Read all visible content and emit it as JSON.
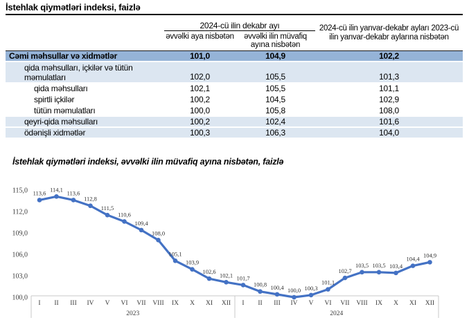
{
  "page_title": "İstehlak qiymətləri indeksi, faizlə",
  "chart_title": "İstehlak qiymətləri indeksi, əvvəlki ilin müvafiq ayına nisbətən, faizlə",
  "colors": {
    "line": "#4472C4",
    "total_row_bg": "#95B3D7",
    "group_row_bg": "#DCE6F1",
    "axis_strip_border": "#C9C9C9"
  },
  "chart_data": [
    {
      "type": "table",
      "title": "İstehlak qiymətləri indeksi, faizlə",
      "column_headers": {
        "period_group": "2024-cü ilin dekabr ayı",
        "mom": "əvvəlki aya nisbətən",
        "yoy": "əvvəlki ilin müvafiq ayına nisbətən",
        "ytd": "2024-cü ilin yanvar-dekabr ayları 2023-cü ilin yanvar-dekabr aylarına nisbətən"
      },
      "rows": [
        {
          "label": "Cəmi məhsullar və xidmətlər",
          "values": [
            "101,0",
            "104,9",
            "102,2"
          ]
        },
        {
          "label": "qida məhsulları, içkilər və tütün məmulatları",
          "values": [
            "102,0",
            "105,5",
            "101,3"
          ]
        },
        {
          "label": "qida məhsulları",
          "values": [
            "102,1",
            "105,5",
            "101,1"
          ]
        },
        {
          "label": "spirtli içkilər",
          "values": [
            "100,2",
            "104,5",
            "102,9"
          ]
        },
        {
          "label": "tütün məmulatları",
          "values": [
            "100,0",
            "105,8",
            "108,0"
          ]
        },
        {
          "label": "qeyri-qida məhsulları",
          "values": [
            "100,2",
            "102,4",
            "101,6"
          ]
        },
        {
          "label": "ödənişli xidmətlər",
          "values": [
            "100,3",
            "106,3",
            "104,0"
          ]
        }
      ]
    },
    {
      "type": "line",
      "title": "İstehlak qiymətləri indeksi, əvvəlki ilin müvafiq ayına nisbətən, faizlə",
      "months": [
        "I",
        "II",
        "III",
        "IV",
        "V",
        "VI",
        "VII",
        "VIII",
        "IX",
        "X",
        "XI",
        "XII"
      ],
      "year_groups": [
        "2023",
        "2024"
      ],
      "series": [
        {
          "name": "İstehlak qiymətləri indeksi",
          "values": [
            113.6,
            114.1,
            113.6,
            112.8,
            111.5,
            110.6,
            109.4,
            108.0,
            105.1,
            103.9,
            102.6,
            102.1,
            101.7,
            100.8,
            100.4,
            100.0,
            100.3,
            101.1,
            102.7,
            103.5,
            103.5,
            103.4,
            104.4,
            104.9
          ]
        }
      ],
      "data_labels": [
        "113,6",
        "114,1",
        "113,6",
        "112,8",
        "111,5",
        "110,6",
        "109,4",
        "108,0",
        "105,1",
        "103,9",
        "102,6",
        "102,1",
        "101,7",
        "100,8",
        "100,4",
        "100,0",
        "100,3",
        "101,1",
        "102,7",
        "103,5",
        "103,5",
        "103,4",
        "104,4",
        "104,9"
      ],
      "ylim": [
        100,
        115
      ],
      "yticks": [
        "100,0",
        "103,0",
        "106,0",
        "109,0",
        "112,0",
        "115,0"
      ],
      "ytick_step": 3,
      "grid": false,
      "legend": "none",
      "line_color": "#4472C4",
      "decimal_separator": ","
    }
  ]
}
